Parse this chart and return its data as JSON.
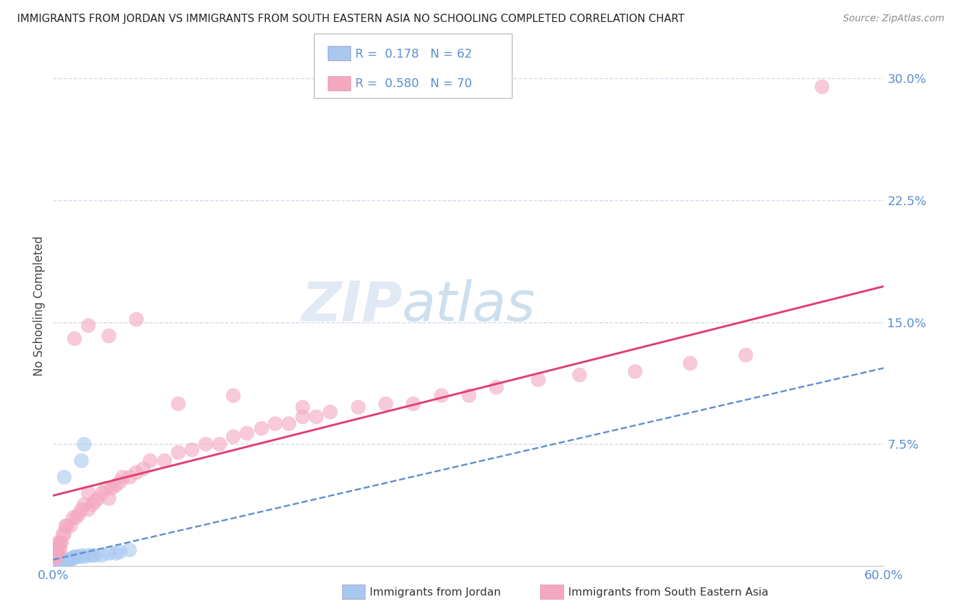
{
  "title": "IMMIGRANTS FROM JORDAN VS IMMIGRANTS FROM SOUTH EASTERN ASIA NO SCHOOLING COMPLETED CORRELATION CHART",
  "source": "Source: ZipAtlas.com",
  "ylabel": "No Schooling Completed",
  "series1_color": "#a8c8f0",
  "series2_color": "#f4a8c0",
  "trendline1_color": "#6090d0",
  "trendline2_color": "#e04070",
  "watermark_color": "#d0dff0",
  "background_color": "#ffffff",
  "grid_color": "#d0d8e8",
  "xlim": [
    0.0,
    0.6
  ],
  "ylim": [
    0.0,
    0.32
  ],
  "ytick_vals": [
    0.0,
    0.075,
    0.15,
    0.225,
    0.3
  ],
  "ytick_labels": [
    "",
    "7.5%",
    "15.0%",
    "22.5%",
    "30.0%"
  ],
  "tick_color": "#5b8dd0",
  "jordan_x": [
    0.001,
    0.001,
    0.001,
    0.002,
    0.002,
    0.002,
    0.002,
    0.002,
    0.002,
    0.002,
    0.002,
    0.002,
    0.002,
    0.002,
    0.003,
    0.003,
    0.003,
    0.003,
    0.003,
    0.003,
    0.003,
    0.003,
    0.004,
    0.004,
    0.004,
    0.004,
    0.004,
    0.005,
    0.005,
    0.005,
    0.005,
    0.006,
    0.006,
    0.006,
    0.007,
    0.007,
    0.008,
    0.008,
    0.009,
    0.009,
    0.01,
    0.01,
    0.011,
    0.012,
    0.013,
    0.014,
    0.015,
    0.016,
    0.018,
    0.02,
    0.022,
    0.025,
    0.028,
    0.03,
    0.035,
    0.04,
    0.045,
    0.048,
    0.02,
    0.022,
    0.008,
    0.055
  ],
  "jordan_y": [
    0.0,
    0.0,
    0.0,
    0.0,
    0.0,
    0.0,
    0.001,
    0.001,
    0.001,
    0.001,
    0.002,
    0.002,
    0.002,
    0.003,
    0.0,
    0.0,
    0.001,
    0.001,
    0.001,
    0.002,
    0.002,
    0.003,
    0.001,
    0.001,
    0.002,
    0.002,
    0.003,
    0.001,
    0.001,
    0.002,
    0.003,
    0.001,
    0.002,
    0.003,
    0.002,
    0.003,
    0.002,
    0.003,
    0.003,
    0.004,
    0.003,
    0.004,
    0.004,
    0.004,
    0.005,
    0.005,
    0.006,
    0.006,
    0.006,
    0.007,
    0.006,
    0.007,
    0.007,
    0.007,
    0.007,
    0.008,
    0.008,
    0.009,
    0.065,
    0.075,
    0.055,
    0.01
  ],
  "sea_x": [
    0.001,
    0.001,
    0.002,
    0.002,
    0.002,
    0.003,
    0.003,
    0.004,
    0.004,
    0.005,
    0.005,
    0.006,
    0.007,
    0.008,
    0.009,
    0.01,
    0.012,
    0.014,
    0.016,
    0.018,
    0.02,
    0.022,
    0.025,
    0.025,
    0.028,
    0.03,
    0.032,
    0.035,
    0.038,
    0.04,
    0.042,
    0.045,
    0.048,
    0.05,
    0.055,
    0.06,
    0.065,
    0.07,
    0.08,
    0.09,
    0.1,
    0.11,
    0.12,
    0.13,
    0.14,
    0.15,
    0.16,
    0.17,
    0.18,
    0.19,
    0.2,
    0.22,
    0.24,
    0.26,
    0.28,
    0.3,
    0.32,
    0.35,
    0.38,
    0.42,
    0.46,
    0.5,
    0.015,
    0.025,
    0.04,
    0.06,
    0.09,
    0.13,
    0.18,
    0.555
  ],
  "sea_y": [
    0.005,
    0.01,
    0.005,
    0.008,
    0.012,
    0.008,
    0.012,
    0.01,
    0.015,
    0.01,
    0.015,
    0.015,
    0.02,
    0.02,
    0.025,
    0.025,
    0.025,
    0.03,
    0.03,
    0.032,
    0.035,
    0.038,
    0.035,
    0.045,
    0.038,
    0.04,
    0.042,
    0.045,
    0.048,
    0.042,
    0.048,
    0.05,
    0.052,
    0.055,
    0.055,
    0.058,
    0.06,
    0.065,
    0.065,
    0.07,
    0.072,
    0.075,
    0.075,
    0.08,
    0.082,
    0.085,
    0.088,
    0.088,
    0.092,
    0.092,
    0.095,
    0.098,
    0.1,
    0.1,
    0.105,
    0.105,
    0.11,
    0.115,
    0.118,
    0.12,
    0.125,
    0.13,
    0.14,
    0.148,
    0.142,
    0.152,
    0.1,
    0.105,
    0.098,
    0.295
  ]
}
